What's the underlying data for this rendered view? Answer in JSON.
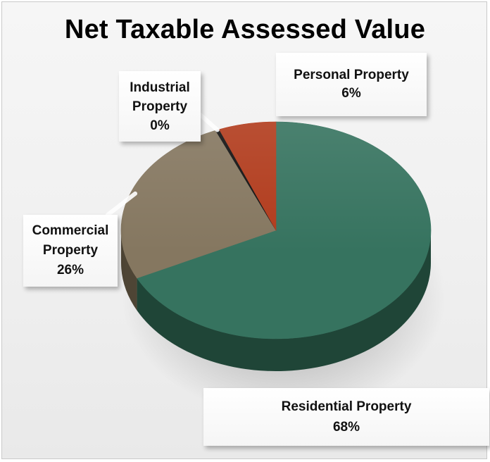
{
  "chart_data": {
    "type": "pie",
    "title": "Net Taxable Assessed Value",
    "slices": [
      {
        "label": "Residential Property",
        "value": 68,
        "display": "68%",
        "color": "#36735f",
        "side_color": "#1f4537"
      },
      {
        "label": "Commercial Property",
        "value": 26,
        "display": "26%",
        "color": "#857760",
        "side_color": "#4e4535"
      },
      {
        "label": "Industrial Property",
        "value": 0.4,
        "display": "0%",
        "color": "#111111",
        "side_color": "#000000"
      },
      {
        "label": "Personal Property",
        "value": 6,
        "display": "6%",
        "color": "#b13b1c",
        "side_color": "#6e230f"
      }
    ],
    "callouts": {
      "personal": [
        "Personal Property",
        "6%"
      ],
      "industrial": [
        "Industrial",
        "Property",
        "0%"
      ],
      "commercial": [
        "Commercial",
        "Property",
        "26%"
      ],
      "residential": [
        "Residential Property",
        "68%"
      ]
    }
  }
}
